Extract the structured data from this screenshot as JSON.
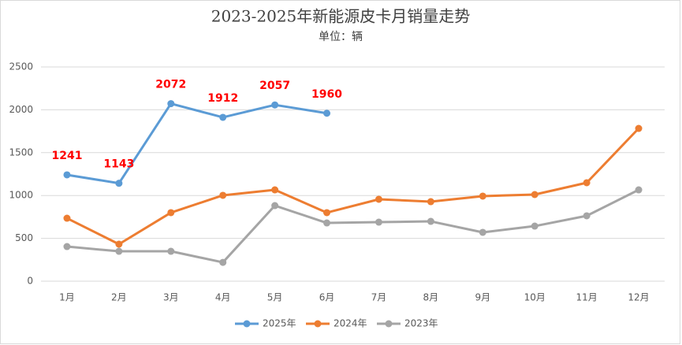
{
  "chart_data": {
    "type": "line",
    "title": "2023-2025年新能源皮卡月销量走势",
    "subtitle": "单位：辆",
    "categories": [
      "1月",
      "2月",
      "3月",
      "4月",
      "5月",
      "6月",
      "7月",
      "8月",
      "9月",
      "10月",
      "11月",
      "12月"
    ],
    "series": [
      {
        "name": "2025年",
        "color": "#5b9bd5",
        "data_labels": true,
        "values": [
          1241,
          1143,
          2072,
          1912,
          2057,
          1960,
          null,
          null,
          null,
          null,
          null,
          null
        ]
      },
      {
        "name": "2024年",
        "color": "#ed7d31",
        "values": [
          735,
          432,
          800,
          1002,
          1066,
          800,
          956,
          928,
          993,
          1011,
          1149,
          1783
        ]
      },
      {
        "name": "2023年",
        "color": "#a5a5a5",
        "values": [
          404,
          349,
          349,
          220,
          882,
          680,
          689,
          698,
          570,
          643,
          763,
          1066
        ]
      }
    ],
    "ylim": [
      0,
      2500
    ],
    "yticks": [
      0,
      500,
      1000,
      1500,
      2000,
      2500
    ],
    "grid": true,
    "legend": "bottom"
  }
}
